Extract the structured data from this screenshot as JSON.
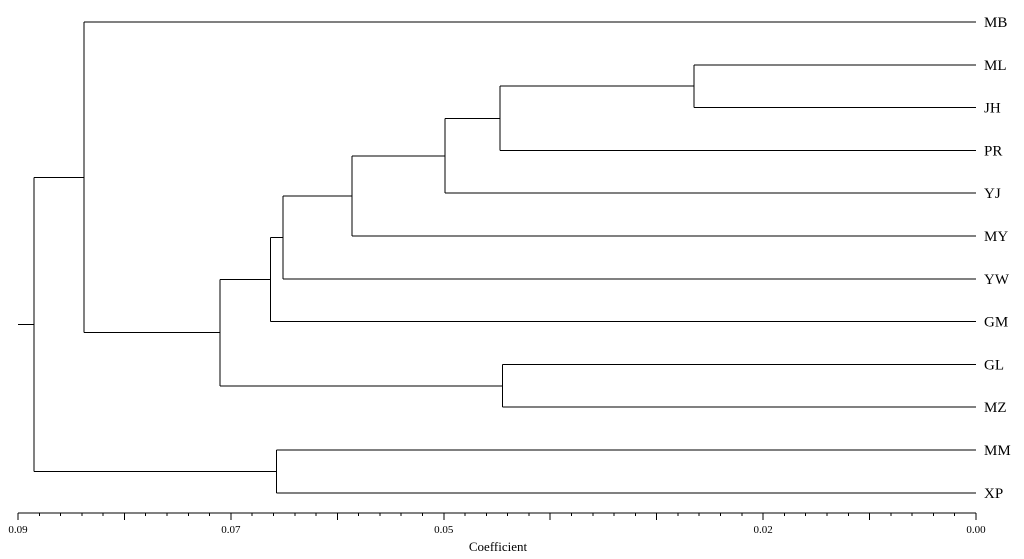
{
  "diagram": {
    "type": "dendrogram",
    "orientation": "leaves-right",
    "axis": {
      "title": "Coefficient",
      "range": [
        0.09,
        0.0
      ],
      "tick_labels": [
        {
          "value": 0.09,
          "label": "0.09"
        },
        {
          "value": 0.07,
          "label": "0.07"
        },
        {
          "value": 0.05,
          "label": "0.05"
        },
        {
          "value": 0.02,
          "label": "0.02"
        },
        {
          "value": 0.0,
          "label": "0.00"
        }
      ],
      "minor_tick_values": [
        0.09,
        0.088,
        0.086,
        0.084,
        0.082,
        0.08,
        0.078,
        0.076,
        0.074,
        0.072,
        0.07,
        0.068,
        0.066,
        0.064,
        0.062,
        0.06,
        0.058,
        0.056,
        0.054,
        0.052,
        0.05,
        0.048,
        0.046,
        0.044,
        0.042,
        0.04,
        0.038,
        0.036,
        0.034,
        0.032,
        0.03,
        0.028,
        0.026,
        0.024,
        0.022,
        0.02,
        0.018,
        0.016,
        0.014,
        0.012,
        0.01,
        0.008,
        0.006,
        0.004,
        0.002,
        0.0
      ],
      "medium_tick_values": [
        0.09,
        0.08,
        0.07,
        0.06,
        0.05,
        0.04,
        0.03,
        0.02,
        0.01,
        0.0
      ]
    },
    "leaves": [
      "MB",
      "ML",
      "JH",
      "PR",
      "YJ",
      "MY",
      "YW",
      "GM",
      "GL",
      "MZ",
      "MM",
      "XP"
    ],
    "tree": {
      "h": 0.0885,
      "children": [
        {
          "h": 0.0838,
          "children": [
            {
              "leaf": "MB"
            },
            {
              "h": 0.071,
              "children": [
                {
                  "h": 0.0663,
                  "children": [
                    {
                      "h": 0.0651,
                      "children": [
                        {
                          "h": 0.0586,
                          "children": [
                            {
                              "h": 0.0499,
                              "children": [
                                {
                                  "h": 0.0447,
                                  "children": [
                                    {
                                      "h": 0.0265,
                                      "children": [
                                        {
                                          "leaf": "ML"
                                        },
                                        {
                                          "leaf": "JH"
                                        }
                                      ]
                                    },
                                    {
                                      "leaf": "PR"
                                    }
                                  ]
                                },
                                {
                                  "leaf": "YJ"
                                }
                              ]
                            },
                            {
                              "leaf": "MY"
                            }
                          ]
                        },
                        {
                          "leaf": "YW"
                        }
                      ]
                    },
                    {
                      "leaf": "GM"
                    }
                  ]
                },
                {
                  "h": 0.0445,
                  "children": [
                    {
                      "leaf": "GL"
                    },
                    {
                      "leaf": "MZ"
                    }
                  ]
                }
              ]
            }
          ]
        },
        {
          "h": 0.0657,
          "children": [
            {
              "leaf": "MM"
            },
            {
              "leaf": "XP"
            }
          ]
        }
      ]
    }
  }
}
